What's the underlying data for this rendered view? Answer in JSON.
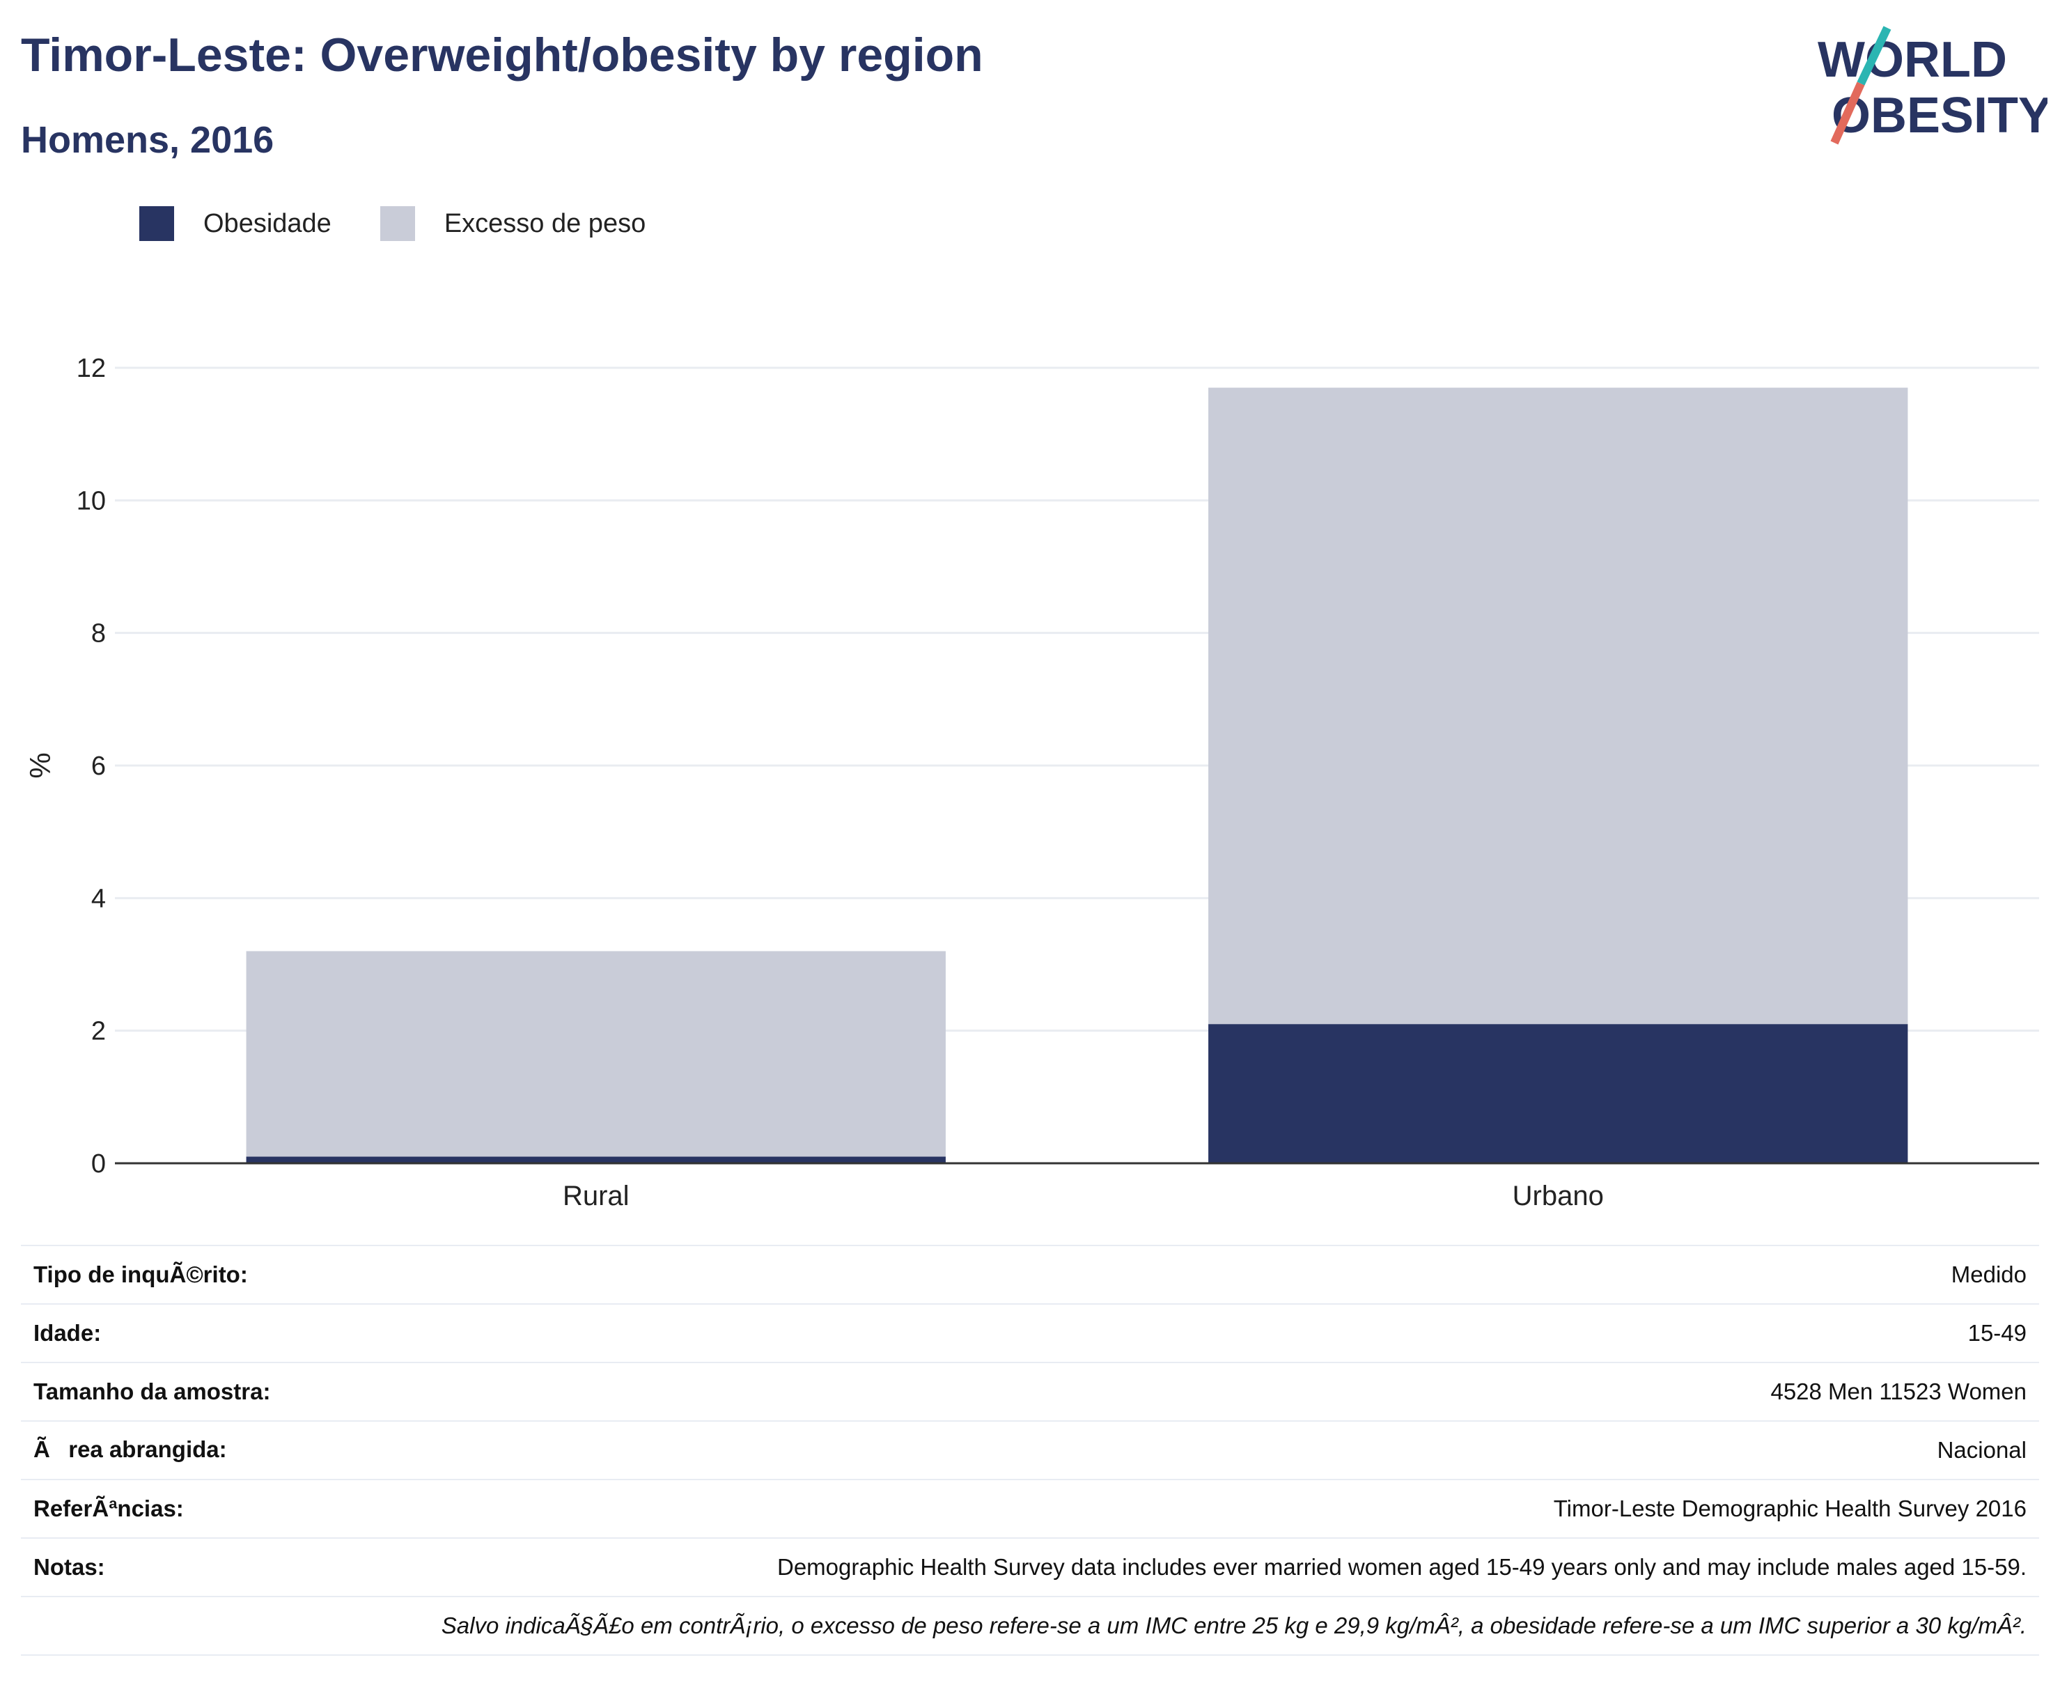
{
  "header": {
    "title": "Timor-Leste: Overweight/obesity by region",
    "subtitle": "Homens, 2016"
  },
  "logo": {
    "line1": "WORLD",
    "line2": "OBESITY"
  },
  "colors": {
    "obesity": "#283462",
    "overweight": "#c9ccd8",
    "axis": "#333333",
    "grid": "#e9ecf1"
  },
  "legend": {
    "obesity_label": "Obesidade",
    "overweight_label": "Excesso de peso"
  },
  "chart_data": {
    "type": "bar",
    "stacked": true,
    "categories": [
      "Rural",
      "Urbano"
    ],
    "series": [
      {
        "name": "Obesidade",
        "values": [
          0.1,
          2.1
        ]
      },
      {
        "name": "Excesso de peso",
        "values": [
          3.1,
          9.6
        ]
      }
    ],
    "ylabel": "%",
    "xlabel": "",
    "ylim": [
      0,
      12
    ],
    "yticks": [
      0,
      2,
      4,
      6,
      8,
      10,
      12
    ],
    "grid": true,
    "legend_position": "top-left"
  },
  "info_table": {
    "rows": [
      {
        "key": "Tipo de inquÃ©rito:",
        "value": "Medido"
      },
      {
        "key": "Idade:",
        "value": "15-49"
      },
      {
        "key": "Tamanho da amostra:",
        "value": "4528 Men 11523 Women"
      },
      {
        "key": "Ãrea abrangida:",
        "value": "Nacional"
      },
      {
        "key": "ReferÃªncias:",
        "value": "Timor-Leste Demographic Health Survey 2016"
      },
      {
        "key": "Notas:",
        "value": "Demographic Health Survey data includes ever married women aged 15-49 years only and may include males aged 15-59."
      }
    ],
    "footnote": "Salvo indicaÃ§Ã£o em contrÃ¡rio, o excesso de peso refere-se a um IMC entre 25 kg e 29,9 kg/mÂ², a obesidade refere-se a um IMC superior a 30 kg/mÂ²."
  }
}
